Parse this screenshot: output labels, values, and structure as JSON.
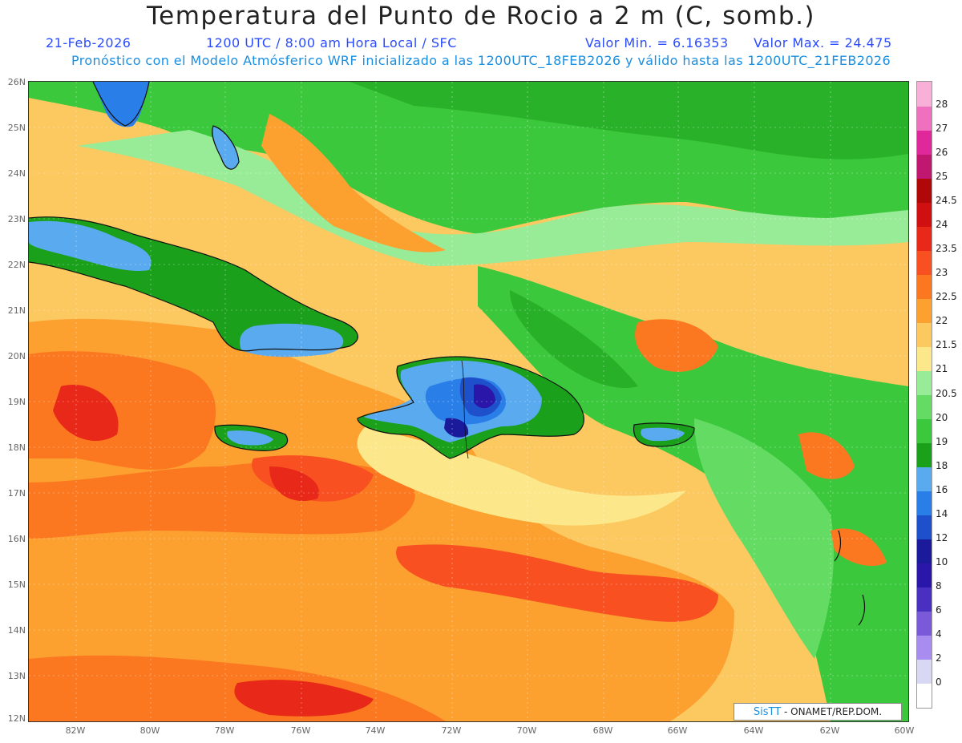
{
  "title": "Temperatura del Punto de Rocio a 2 m (C, somb.)",
  "subtitle": {
    "date": "21-Feb-2026",
    "time": "1200 UTC / 8:00 am Hora Local / SFC",
    "min": "Valor Min. = 6.16353",
    "max": "Valor Max. = 24.475",
    "model_line": "Pronóstico con el Modelo Atmósferico WRF inicializado a las 1200UTC_18FEB2026 y válido hasta las  1200UTC_21FEB2026"
  },
  "axes": {
    "lat_labels": [
      "26N",
      "25N",
      "24N",
      "23N",
      "22N",
      "21N",
      "20N",
      "19N",
      "18N",
      "17N",
      "16N",
      "15N",
      "14N",
      "13N",
      "12N"
    ],
    "lon_labels": [
      "82W",
      "80W",
      "78W",
      "76W",
      "74W",
      "72W",
      "70W",
      "68W",
      "66W",
      "64W",
      "62W",
      "60W"
    ]
  },
  "colorbar": {
    "levels": [
      "0",
      "2",
      "4",
      "6",
      "8",
      "10",
      "12",
      "14",
      "16",
      "18",
      "19",
      "20",
      "20.5",
      "21",
      "21.5",
      "22",
      "22.5",
      "23",
      "23.5",
      "24",
      "24.5",
      "25",
      "26",
      "27",
      "28"
    ],
    "colors": [
      "#ffffff",
      "#d8d8f4",
      "#a88cf0",
      "#7a5ad8",
      "#4a30c0",
      "#2a16a8",
      "#1a1a9a",
      "#1e50cc",
      "#2a7ee8",
      "#5aaaf0",
      "#1aa01a",
      "#3cc83c",
      "#64dc64",
      "#98ec98",
      "#fce88a",
      "#fcc860",
      "#fca030",
      "#fc7820",
      "#f85020",
      "#e82818",
      "#d01010",
      "#b00808",
      "#c01870",
      "#e0289a",
      "#f070c0",
      "#f8b0d8"
    ]
  },
  "map": {
    "region": "Caribe / Republica Dominicana",
    "lat_range": [
      12,
      26
    ],
    "lon_range": [
      -83,
      -60
    ]
  },
  "credit": {
    "logo": "SisTT",
    "text": "- ONAMET/REP.DOM."
  }
}
